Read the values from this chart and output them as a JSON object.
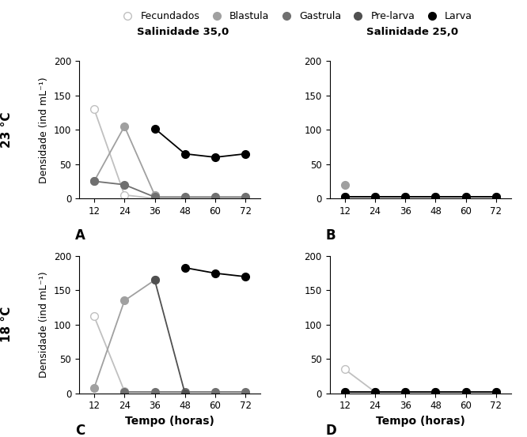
{
  "x": [
    12,
    24,
    36,
    48,
    60,
    72
  ],
  "panels": {
    "A": {
      "Fecundados": {
        "x": [
          12,
          24,
          36
        ],
        "y": [
          130,
          5,
          0
        ],
        "color": "#c0c0c0",
        "filled": false
      },
      "Blastula": {
        "x": [
          12,
          24,
          36
        ],
        "y": [
          25,
          105,
          5
        ],
        "color": "#a0a0a0",
        "filled": true
      },
      "Gastrula": {
        "x": [
          12,
          24,
          36,
          48,
          60,
          72
        ],
        "y": [
          25,
          20,
          2,
          2,
          2,
          2
        ],
        "color": "#707070",
        "filled": true
      },
      "Pre-larva": {
        "x": [],
        "y": [],
        "color": "#404040",
        "filled": true
      },
      "Larva": {
        "x": [
          36,
          48,
          60,
          72
        ],
        "y": [
          102,
          65,
          60,
          65
        ],
        "color": "#000000",
        "filled": true
      }
    },
    "B": {
      "Fecundados": {
        "x": [],
        "y": [],
        "color": "#c0c0c0",
        "filled": false
      },
      "Blastula": {
        "x": [
          12
        ],
        "y": [
          20
        ],
        "color": "#a0a0a0",
        "filled": true
      },
      "Gastrula": {
        "x": [
          12,
          24,
          36,
          48,
          60,
          72
        ],
        "y": [
          2,
          2,
          2,
          2,
          2,
          2
        ],
        "color": "#707070",
        "filled": true
      },
      "Pre-larva": {
        "x": [],
        "y": [],
        "color": "#404040",
        "filled": true
      },
      "Larva": {
        "x": [
          12,
          24,
          36,
          48,
          60,
          72
        ],
        "y": [
          2,
          2,
          2,
          2,
          2,
          2
        ],
        "color": "#000000",
        "filled": true
      }
    },
    "C": {
      "Fecundados": {
        "x": [
          12,
          24
        ],
        "y": [
          112,
          3
        ],
        "color": "#c0c0c0",
        "filled": false
      },
      "Blastula": {
        "x": [
          12,
          24,
          36
        ],
        "y": [
          8,
          135,
          165
        ],
        "color": "#a0a0a0",
        "filled": true
      },
      "Gastrula": {
        "x": [
          24,
          36,
          48,
          60,
          72
        ],
        "y": [
          2,
          2,
          2,
          2,
          2
        ],
        "color": "#707070",
        "filled": true
      },
      "Pre-larva": {
        "x": [
          36,
          48
        ],
        "y": [
          165,
          0
        ],
        "color": "#505050",
        "filled": true
      },
      "Larva": {
        "x": [
          48,
          60,
          72
        ],
        "y": [
          183,
          175,
          170
        ],
        "color": "#000000",
        "filled": true
      }
    },
    "D": {
      "Fecundados": {
        "x": [
          12,
          24
        ],
        "y": [
          35,
          2
        ],
        "color": "#c0c0c0",
        "filled": false
      },
      "Blastula": {
        "x": [],
        "y": [],
        "color": "#a0a0a0",
        "filled": true
      },
      "Gastrula": {
        "x": [
          12,
          24,
          36,
          48,
          60,
          72
        ],
        "y": [
          2,
          2,
          2,
          2,
          2,
          2
        ],
        "color": "#707070",
        "filled": true
      },
      "Pre-larva": {
        "x": [],
        "y": [],
        "color": "#404040",
        "filled": true
      },
      "Larva": {
        "x": [
          12,
          24,
          36,
          48,
          60,
          72
        ],
        "y": [
          2,
          2,
          2,
          2,
          2,
          2
        ],
        "color": "#000000",
        "filled": true
      }
    }
  },
  "ylim": [
    0,
    200
  ],
  "yticks": [
    0,
    50,
    100,
    150,
    200
  ],
  "xticks": [
    12,
    24,
    36,
    48,
    60,
    72
  ],
  "ylabel": "Densidade (ind mL⁻¹)",
  "xlabel": "Tempo (horas)",
  "row_labels": [
    "23 °C",
    "18 °C"
  ],
  "panel_labels": [
    "A",
    "B",
    "C",
    "D"
  ],
  "col_titles": [
    "Salinidade 35,0",
    "Salinidade 25,0"
  ],
  "legend_labels": [
    "Fecundados",
    "Blastula",
    "Gastrula",
    "Pre-larva",
    "Larva"
  ],
  "legend_colors": [
    "#c0c0c0",
    "#a0a0a0",
    "#707070",
    "#505050",
    "#000000"
  ],
  "legend_filled": [
    false,
    true,
    true,
    true,
    true
  ],
  "markersize": 7,
  "linewidth": 1.3,
  "background_color": "#ffffff"
}
